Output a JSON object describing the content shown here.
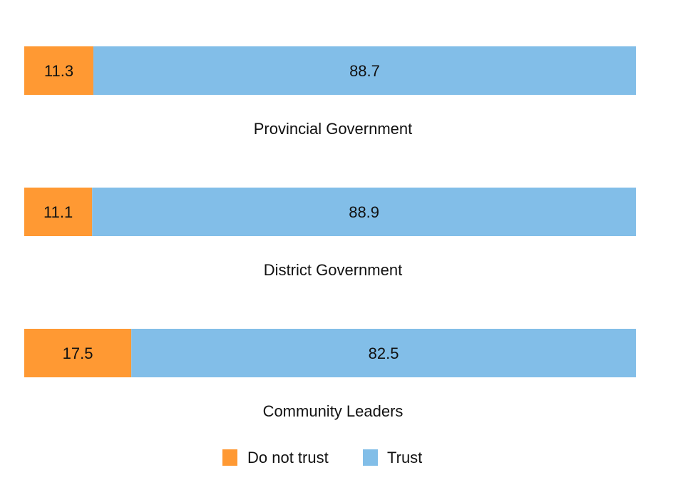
{
  "chart_data": {
    "type": "bar",
    "orientation": "horizontal",
    "stacked": true,
    "percent": true,
    "categories": [
      "Provincial Government",
      "District Government",
      "Community Leaders"
    ],
    "series": [
      {
        "name": "Do not trust",
        "color": "#FF9933",
        "values": [
          11.3,
          11.1,
          17.5
        ]
      },
      {
        "name": "Trust",
        "color": "#82BEE8",
        "values": [
          88.7,
          88.9,
          82.5
        ]
      }
    ],
    "xlim": [
      0,
      100
    ],
    "grid": false,
    "legend": "bottom-center"
  }
}
